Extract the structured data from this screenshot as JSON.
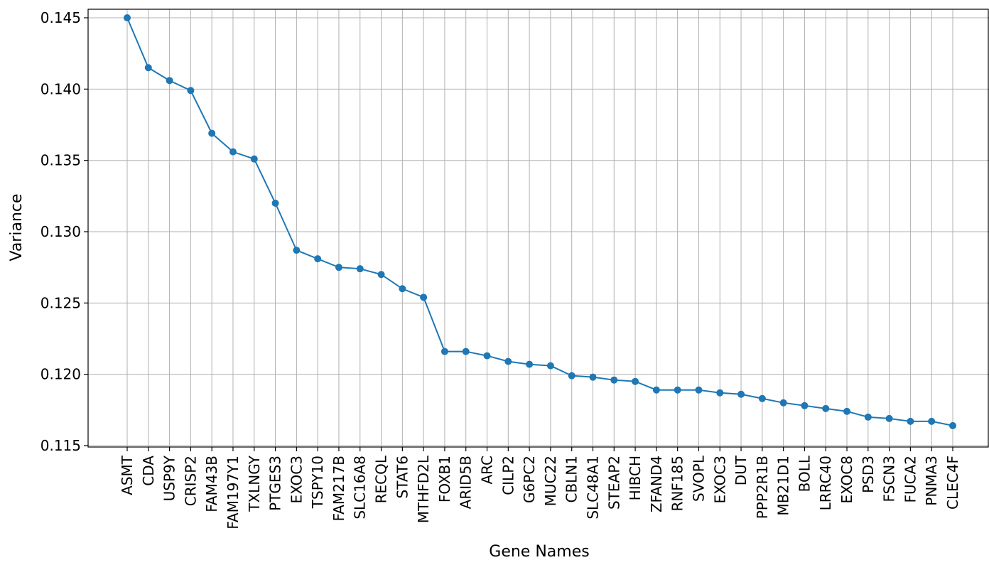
{
  "chart_data": {
    "type": "line",
    "title": "",
    "xlabel": "Gene Names",
    "ylabel": "Variance",
    "ylim": [
      0.1149,
      0.1456
    ],
    "yticks": [
      0.115,
      0.12,
      0.125,
      0.13,
      0.135,
      0.14,
      0.145
    ],
    "ytick_labels": [
      "0.115",
      "0.120",
      "0.125",
      "0.130",
      "0.135",
      "0.140",
      "0.145"
    ],
    "grid": true,
    "legend": "none",
    "colors": {
      "series": "#1f77b4",
      "grid": "#b0b0b0"
    },
    "categories": [
      "ASMT",
      "CDA",
      "USP9Y",
      "CRISP2",
      "FAM43B",
      "FAM197Y1",
      "TXLNGY",
      "PTGES3",
      "EXOC3",
      "TSPY10",
      "FAM217B",
      "SLC16A8",
      "RECQL",
      "STAT6",
      "MTHFD2L",
      "FOXB1",
      "ARID5B",
      "ARC",
      "CILP2",
      "G6PC2",
      "MUC22",
      "CBLN1",
      "SLC48A1",
      "STEAP2",
      "HIBCH",
      "ZFAND4",
      "RNF185",
      "SVOPL",
      "EXOC3",
      "DUT",
      "PPP2R1B",
      "MB21D1",
      "BOLL",
      "LRRC40",
      "EXOC8",
      "PSD3",
      "FSCN3",
      "FUCA2",
      "PNMA3",
      "CLEC4F"
    ],
    "series": [
      {
        "values": [
          0.145,
          0.1415,
          0.1406,
          0.1399,
          0.1369,
          0.1356,
          0.1351,
          0.132,
          0.1287,
          0.1281,
          0.1275,
          0.1274,
          0.127,
          0.126,
          0.1254,
          0.1216,
          0.1216,
          0.1213,
          0.1209,
          0.1207,
          0.1206,
          0.1199,
          0.1198,
          0.1196,
          0.1195,
          0.1189,
          0.1189,
          0.1189,
          0.1187,
          0.1186,
          0.1183,
          0.118,
          0.1178,
          0.1176,
          0.1174,
          0.117,
          0.1169,
          0.1167,
          0.1167,
          0.1164
        ]
      }
    ]
  }
}
